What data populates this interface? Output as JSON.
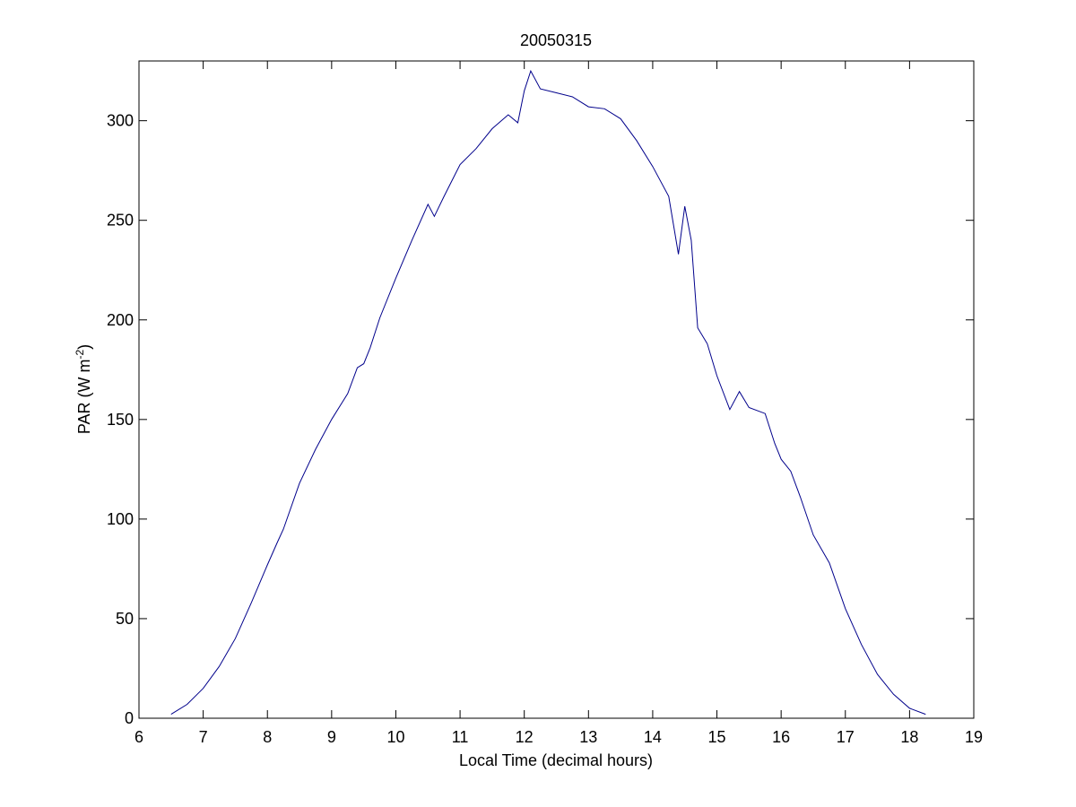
{
  "chart_data": {
    "type": "line",
    "title": "20050315",
    "xlabel": "Local Time (decimal hours)",
    "ylabel_main": "PAR (W m",
    "ylabel_sup": "-2",
    "ylabel_close": ")",
    "xlim": [
      6,
      19
    ],
    "ylim": [
      0,
      330
    ],
    "xticks": [
      6,
      7,
      8,
      9,
      10,
      11,
      12,
      13,
      14,
      15,
      16,
      17,
      18,
      19
    ],
    "yticks": [
      0,
      50,
      100,
      150,
      200,
      250,
      300
    ],
    "grid": false,
    "line_color": "#00008b",
    "series": [
      {
        "x": [
          6.5,
          6.75,
          7.0,
          7.25,
          7.5,
          7.75,
          8.0,
          8.15,
          8.25,
          8.5,
          8.75,
          9.0,
          9.25,
          9.4,
          9.5,
          9.6,
          9.75,
          10.0,
          10.25,
          10.5,
          10.6,
          10.75,
          11.0,
          11.25,
          11.5,
          11.75,
          11.9,
          12.0,
          12.1,
          12.25,
          12.5,
          12.75,
          13.0,
          13.25,
          13.5,
          13.75,
          14.0,
          14.25,
          14.4,
          14.5,
          14.6,
          14.7,
          14.85,
          15.0,
          15.2,
          15.35,
          15.5,
          15.75,
          15.9,
          16.0,
          16.15,
          16.3,
          16.5,
          16.75,
          17.0,
          17.25,
          17.5,
          17.75,
          18.0,
          18.25
        ],
        "y": [
          2,
          7,
          15,
          26,
          40,
          58,
          77,
          88,
          95,
          118,
          135,
          150,
          163,
          176,
          178,
          186,
          201,
          221,
          240,
          258,
          252,
          262,
          278,
          286,
          296,
          303,
          299,
          315,
          325,
          316,
          314,
          312,
          307,
          306,
          301,
          290,
          277,
          262,
          233,
          257,
          240,
          196,
          188,
          172,
          155,
          164,
          156,
          153,
          138,
          130,
          124,
          111,
          92,
          78,
          55,
          37,
          22,
          12,
          5,
          2
        ]
      }
    ]
  }
}
